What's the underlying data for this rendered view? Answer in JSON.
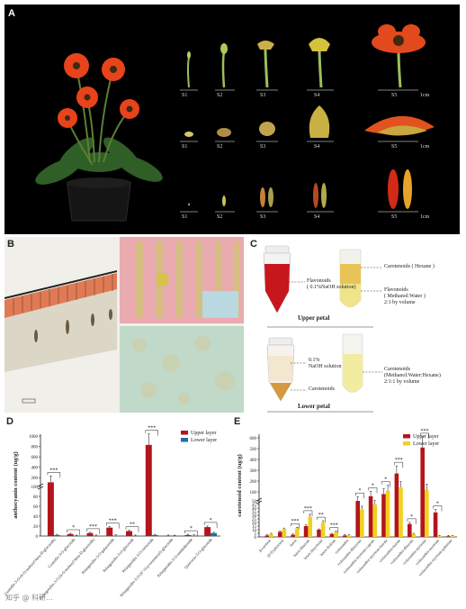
{
  "panels": {
    "a": {
      "label": "A",
      "stages": [
        "S1",
        "S2",
        "S3",
        "S4",
        "S5"
      ],
      "scale": "1cm"
    },
    "b": {
      "label": "B"
    },
    "c": {
      "label": "C",
      "upper": {
        "caption": "Upper petal",
        "flavonoids_naoh": "Flavonoids",
        "flavonoids_naoh_sub": "( 0.1%NaOH solution)",
        "carotenoids_hexane": "Carotenoids ( Hexane )",
        "flavonoids_mw": "Flavonoids",
        "flavonoids_mw_sub": "( Methanol:Water )",
        "flavonoids_mw_ratio": "2:1 by volume"
      },
      "lower": {
        "caption": "Lower petal",
        "naoh": "0.1%",
        "naoh_sub": "NaOH solution",
        "carotenoids_left": "Carotenoids",
        "carotenoids_right": "Carotenoids",
        "carotenoids_right_sub": "(Methanol:Water:Hexane)",
        "carotenoids_right_ratio": "2:1:1 by volume"
      }
    },
    "d": {
      "label": "D"
    },
    "e": {
      "label": "E"
    }
  },
  "watermark": "知乎 @ 科研...",
  "chart_data": [
    {
      "type": "bar",
      "panel": "D",
      "ylabel": "anthocyanin content (ug/g)",
      "yticks": [
        0,
        20,
        40,
        60,
        80,
        100,
        200,
        400,
        600,
        800,
        1000
      ],
      "legend": [
        "Upper layer",
        "Lower layer"
      ],
      "legend_position": "top-right",
      "categories": [
        "Cyanidin-3-O-(6-O-malonyl-beta-D-glucoside)",
        "Cyanidin-3-O-glucoside",
        "Pelargonidin-3-O-(6-O-malonyl-beta-D-glucoside)",
        "Pelargonidin-3-O-galactoside",
        "Pelargonidin-3-O-glucoside",
        "Pelargonidin-3-O-rutinoside",
        "Pelargonidin-3-O-(6''-O-p-coumaroyl)-glucoside",
        "Pelargonidin-3-O-sambubioside",
        "Quercetin-3-O-glucoside"
      ],
      "series": [
        {
          "name": "Upper layer",
          "color": "#b3151c",
          "values": [
            110,
            4,
            6,
            17,
            10,
            830,
            0.5,
            2,
            18
          ]
        },
        {
          "name": "Lower layer",
          "color": "#1f6fa0",
          "values": [
            2,
            0.3,
            0.5,
            1,
            0.5,
            2,
            0.2,
            1,
            6
          ]
        }
      ],
      "significance": [
        "***",
        "*",
        "***",
        "***",
        "**",
        "***",
        "",
        "*",
        "*"
      ]
    },
    {
      "type": "bar",
      "panel": "E",
      "ylabel": "carotenoid content (ug/g)",
      "yticks": [
        0,
        5,
        10,
        15,
        20,
        25,
        30,
        35,
        40,
        45,
        50,
        100,
        200,
        300,
        400,
        500,
        600
      ],
      "legend": [
        "Upper layer",
        "Lower layer"
      ],
      "legend_position": "top-right",
      "categories": [
        "β-carotene",
        "(E/Z)-phytoene",
        "lutein",
        "lutein dilaurate",
        "lutein dimyristate",
        "lutein dioleate",
        "violaxanthin",
        "violaxanthin dibutyrate",
        "violaxanthin myristate-caprate",
        "violaxanthin myristate-laurate",
        "violaxanthin-laurate",
        "violaxanthin dilaurate",
        "violaxanthin myristate",
        "violaxanthin-myristate",
        "violaxanthin myristate-palmitate"
      ],
      "series": [
        {
          "name": "Upper layer",
          "color": "#b3151c",
          "values": [
            2,
            7,
            3,
            15,
            10,
            4,
            2,
            50,
            60,
            80,
            270,
            18,
            510,
            34,
            1
          ]
        },
        {
          "name": "Lower layer",
          "color": "#f2d01e",
          "values": [
            4,
            11,
            12,
            28,
            20,
            7,
            2,
            38,
            45,
            110,
            140,
            4,
            120,
            1,
            1
          ]
        }
      ],
      "significance": [
        "",
        "",
        "***",
        "***",
        "**",
        "***",
        "",
        "*",
        "*",
        "*",
        "***",
        "*",
        "***",
        "*",
        ""
      ]
    }
  ]
}
